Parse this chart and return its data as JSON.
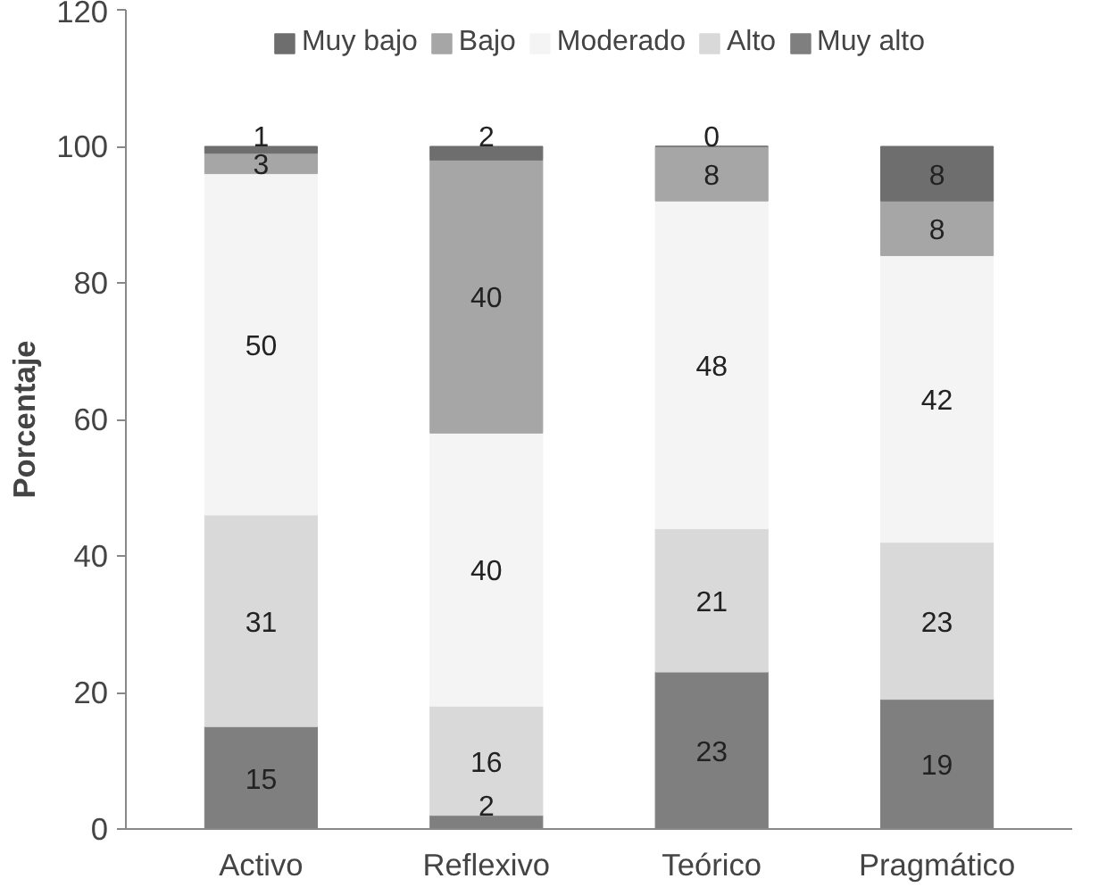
{
  "chart_data": {
    "type": "bar",
    "stacked": true,
    "ylabel": "Porcentaje",
    "categories": [
      "Activo",
      "Reflexivo",
      "Teórico",
      "Pragmático"
    ],
    "series": [
      {
        "name": "Muy alto",
        "color": "#7f7f7f",
        "values": [
          15,
          2,
          23,
          19
        ]
      },
      {
        "name": "Alto",
        "color": "#d9d9d9",
        "values": [
          31,
          16,
          21,
          23
        ]
      },
      {
        "name": "Moderado",
        "color": "#f4f4f4",
        "values": [
          50,
          40,
          48,
          42
        ]
      },
      {
        "name": "Bajo",
        "color": "#a6a6a6",
        "values": [
          3,
          40,
          8,
          8
        ]
      },
      {
        "name": "Muy bajo",
        "color": "#6e6e6e",
        "values": [
          1,
          2,
          0,
          8
        ]
      }
    ],
    "ylim": [
      0,
      120
    ],
    "yticks": [
      0,
      20,
      40,
      60,
      80,
      100,
      120
    ],
    "grid": false,
    "legend": "top",
    "data_labels": true
  }
}
